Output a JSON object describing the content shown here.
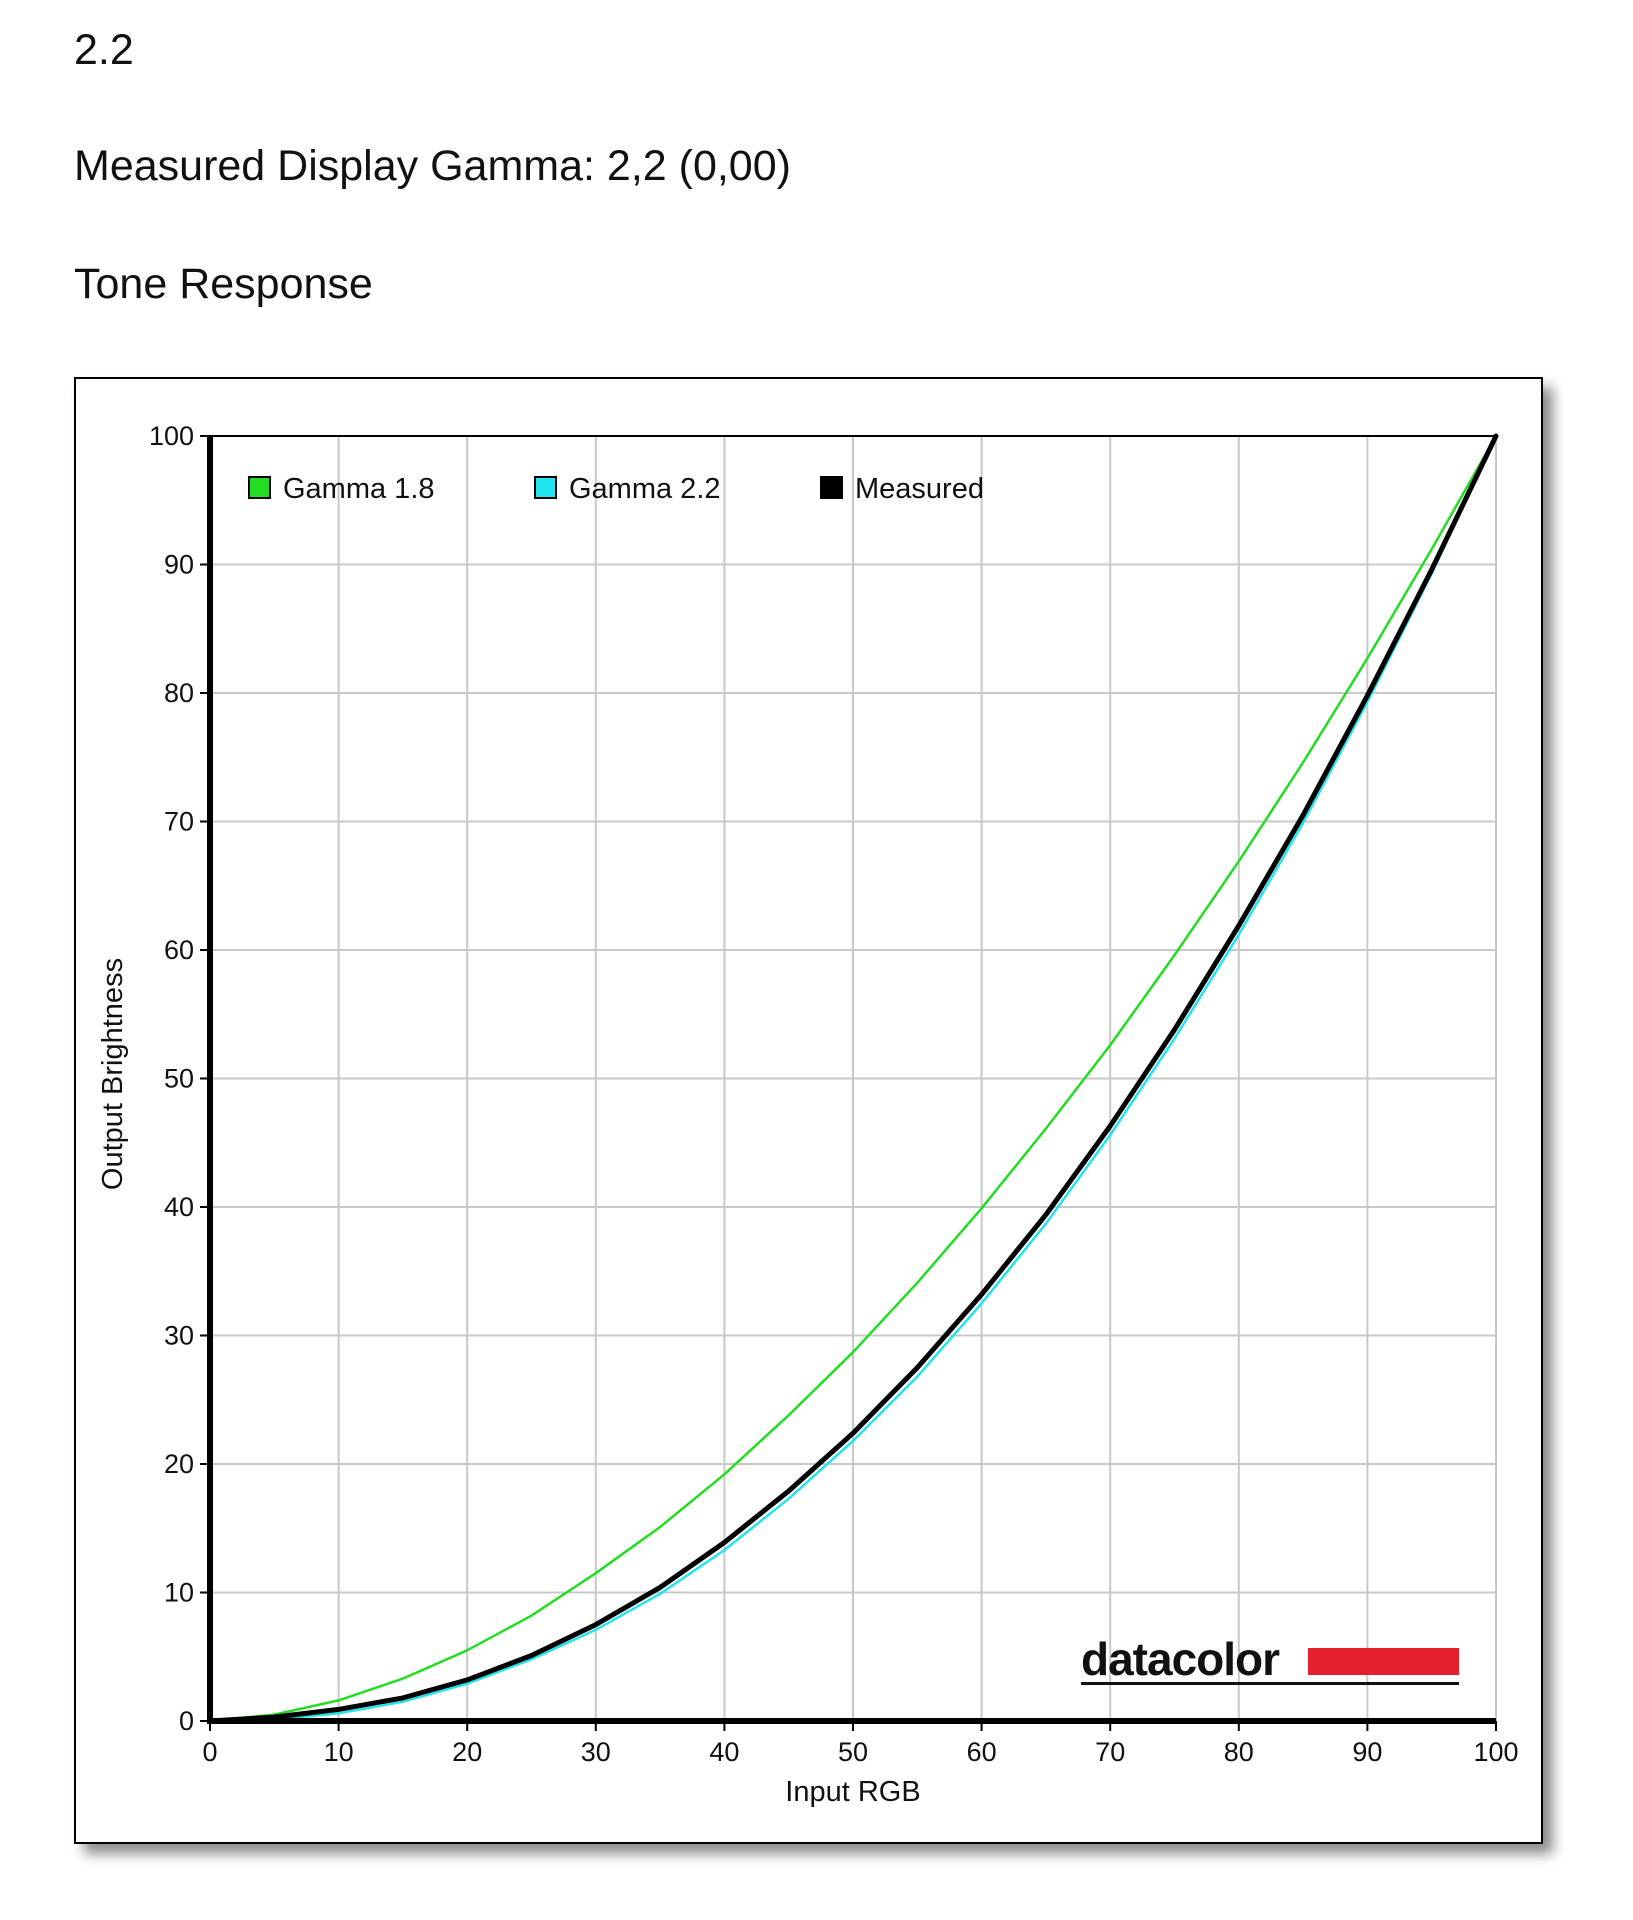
{
  "header": {
    "gamma_value": "2.2",
    "measured_label": "Measured Display Gamma: 2,2 (0,00)",
    "section_title": "Tone Response"
  },
  "logo": {
    "text": "datacolor",
    "bar_color": "#e4202e"
  },
  "chart_data": {
    "type": "line",
    "title": "",
    "xlabel": "Input RGB",
    "ylabel": "Output Brightness",
    "xlim": [
      0,
      100
    ],
    "ylim": [
      0,
      100
    ],
    "xticks": [
      0,
      10,
      20,
      30,
      40,
      50,
      60,
      70,
      80,
      90,
      100
    ],
    "yticks": [
      0,
      10,
      20,
      30,
      40,
      50,
      60,
      70,
      80,
      90,
      100
    ],
    "grid": true,
    "legend_position": "top-left",
    "x": [
      0,
      5,
      10,
      15,
      20,
      25,
      30,
      35,
      40,
      45,
      50,
      55,
      60,
      65,
      70,
      75,
      80,
      85,
      90,
      95,
      100
    ],
    "series": [
      {
        "name": "Gamma 1.8",
        "color": "#22dd22",
        "values": [
          0,
          0.5,
          1.6,
          3.3,
          5.5,
          8.2,
          11.5,
          15.1,
          19.2,
          23.8,
          28.7,
          34.1,
          39.9,
          46.1,
          52.6,
          59.6,
          66.9,
          74.6,
          82.7,
          91.2,
          100
        ]
      },
      {
        "name": "Gamma 2.2",
        "color": "#22e4ee",
        "values": [
          0,
          0.1,
          0.6,
          1.5,
          2.9,
          4.8,
          7.1,
          9.9,
          13.3,
          17.3,
          21.8,
          26.8,
          32.5,
          38.7,
          45.6,
          53.1,
          61.2,
          69.9,
          79.3,
          89.3,
          100
        ]
      },
      {
        "name": "Measured",
        "color": "#000000",
        "values": [
          0,
          0.3,
          0.9,
          1.8,
          3.2,
          5.1,
          7.5,
          10.4,
          13.9,
          17.9,
          22.4,
          27.5,
          33.2,
          39.4,
          46.3,
          53.8,
          61.9,
          70.5,
          79.8,
          89.6,
          100
        ]
      }
    ]
  }
}
